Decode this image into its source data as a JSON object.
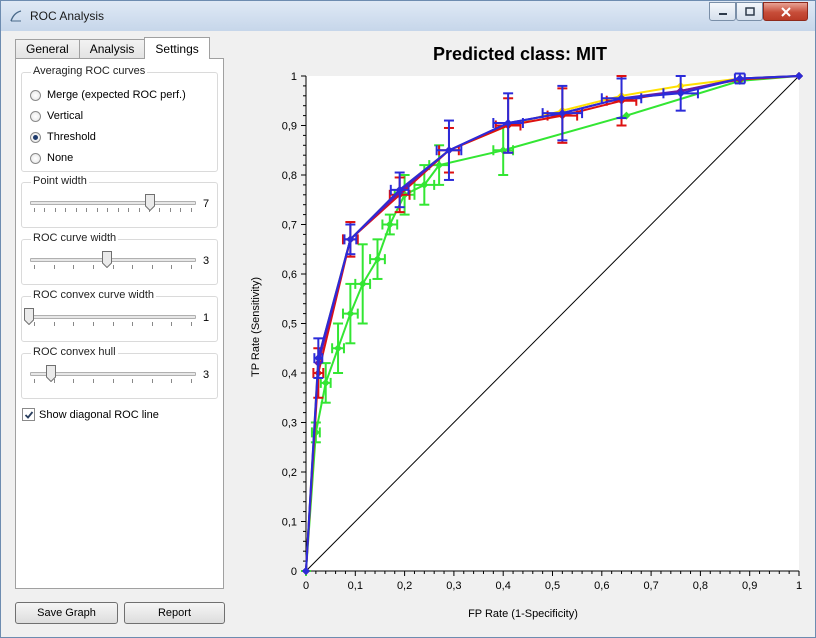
{
  "window": {
    "title": "ROC Analysis"
  },
  "tabs": [
    {
      "label": "General"
    },
    {
      "label": "Analysis"
    },
    {
      "label": "Settings"
    }
  ],
  "settings": {
    "averaging": {
      "title": "Averaging ROC curves",
      "options": [
        {
          "label": "Merge (expected ROC perf.)",
          "selected": false
        },
        {
          "label": "Vertical",
          "selected": false
        },
        {
          "label": "Threshold",
          "selected": true
        },
        {
          "label": "None",
          "selected": false
        }
      ]
    },
    "point_width": {
      "title": "Point width",
      "value": "7",
      "level": 0.75
    },
    "roc_curve_width": {
      "title": "ROC curve width",
      "value": "3",
      "level": 0.5
    },
    "convex_curve_width": {
      "title": "ROC convex curve width",
      "value": "1",
      "level": 0.0
    },
    "convex_hull": {
      "title": "ROC convex hull",
      "value": "3",
      "level": 0.13
    },
    "show_diagonal": {
      "label": "Show diagonal ROC line",
      "checked": true
    }
  },
  "buttons": {
    "save_graph": "Save Graph",
    "report": "Report"
  },
  "colors": {
    "yellow": "#ffe000",
    "green": "#33e633",
    "red": "#dd1111",
    "purple": "#6a1aa6",
    "blue": "#2b2bd9",
    "diagonal": "#000000"
  },
  "chart_data": {
    "type": "line",
    "title": "Predicted class: MIT",
    "xlabel": "FP Rate (1-Specificity)",
    "ylabel": "TP Rate (Sensitivity)",
    "xlim": [
      0,
      1
    ],
    "ylim": [
      0,
      1
    ],
    "x_ticks": [
      "0",
      "0,1",
      "0,2",
      "0,3",
      "0,4",
      "0,5",
      "0,6",
      "0,7",
      "0,8",
      "0,9",
      "1"
    ],
    "y_ticks": [
      "0",
      "0,1",
      "0,2",
      "0,3",
      "0,4",
      "0,5",
      "0,6",
      "0,7",
      "0,8",
      "0,9",
      "1"
    ],
    "grid": false,
    "diagonal": true,
    "series": [
      {
        "color": "#ffe000",
        "x": [
          0,
          0.025,
          0.09,
          0.19,
          0.29,
          0.41,
          0.52,
          0.64,
          0.76,
          0.88,
          1.0
        ],
        "y": [
          0,
          0.43,
          0.67,
          0.77,
          0.85,
          0.9,
          0.93,
          0.96,
          0.98,
          0.995,
          1.0
        ]
      },
      {
        "color": "#33e633",
        "x": [
          0,
          0.02,
          0.04,
          0.065,
          0.09,
          0.115,
          0.145,
          0.17,
          0.2,
          0.24,
          0.27,
          0.4,
          0.65,
          0.88,
          1.0
        ],
        "y": [
          0,
          0.28,
          0.38,
          0.45,
          0.52,
          0.58,
          0.63,
          0.7,
          0.76,
          0.78,
          0.82,
          0.85,
          0.92,
          0.99,
          1.0
        ],
        "errors": [
          [
            0,
            0,
            0,
            0
          ],
          [
            0.02,
            0.28,
            0.008,
            0.02
          ],
          [
            0.04,
            0.38,
            0.01,
            0.04
          ],
          [
            0.065,
            0.45,
            0.012,
            0.05
          ],
          [
            0.09,
            0.52,
            0.015,
            0.06
          ],
          [
            0.115,
            0.58,
            0.015,
            0.08
          ],
          [
            0.145,
            0.63,
            0.015,
            0.04
          ],
          [
            0.17,
            0.7,
            0.015,
            0.02
          ],
          [
            0.2,
            0.76,
            0.02,
            0.04
          ],
          [
            0.24,
            0.78,
            0.02,
            0.04
          ],
          [
            0.27,
            0.82,
            0.02,
            0.04
          ],
          [
            0.4,
            0.85,
            0.02,
            0.05
          ]
        ]
      },
      {
        "color": "#dd1111",
        "x": [
          0,
          0.025,
          0.09,
          0.19,
          0.29,
          0.41,
          0.52,
          0.64,
          0.76,
          0.88,
          1.0
        ],
        "y": [
          0,
          0.4,
          0.67,
          0.76,
          0.85,
          0.9,
          0.92,
          0.95,
          0.97,
          0.993,
          1.0
        ],
        "errors": [
          [
            0.025,
            0.4,
            0.01,
            0.05
          ],
          [
            0.09,
            0.67,
            0.015,
            0.035
          ],
          [
            0.19,
            0.76,
            0.02,
            0.035
          ],
          [
            0.29,
            0.85,
            0.02,
            0.045
          ],
          [
            0.41,
            0.9,
            0.025,
            0.055
          ],
          [
            0.52,
            0.92,
            0.03,
            0.055
          ],
          [
            0.64,
            0.95,
            0.03,
            0.05
          ]
        ]
      },
      {
        "color": "#6a1aa6",
        "x": [
          0,
          0.025,
          0.09,
          0.19,
          0.29,
          0.41,
          0.52,
          0.64,
          0.76,
          0.88,
          1.0
        ],
        "y": [
          0,
          0.42,
          0.67,
          0.765,
          0.85,
          0.905,
          0.925,
          0.955,
          0.97,
          0.995,
          1.0
        ]
      },
      {
        "color": "#2b2bd9",
        "x": [
          0,
          0.025,
          0.09,
          0.19,
          0.29,
          0.41,
          0.52,
          0.64,
          0.76,
          0.88,
          1.0
        ],
        "y": [
          0,
          0.43,
          0.67,
          0.77,
          0.85,
          0.905,
          0.925,
          0.955,
          0.965,
          0.995,
          1.0
        ],
        "errors": [
          [
            0.025,
            0.43,
            0.008,
            0.04
          ],
          [
            0.09,
            0.67,
            0.012,
            0.03
          ],
          [
            0.19,
            0.77,
            0.018,
            0.035
          ],
          [
            0.29,
            0.85,
            0.025,
            0.06
          ],
          [
            0.41,
            0.905,
            0.03,
            0.06
          ],
          [
            0.52,
            0.925,
            0.04,
            0.055
          ],
          [
            0.64,
            0.955,
            0.04,
            0.04
          ],
          [
            0.76,
            0.965,
            0.035,
            0.035
          ],
          [
            0.88,
            0.995,
            0.01,
            0.01
          ]
        ]
      }
    ]
  }
}
